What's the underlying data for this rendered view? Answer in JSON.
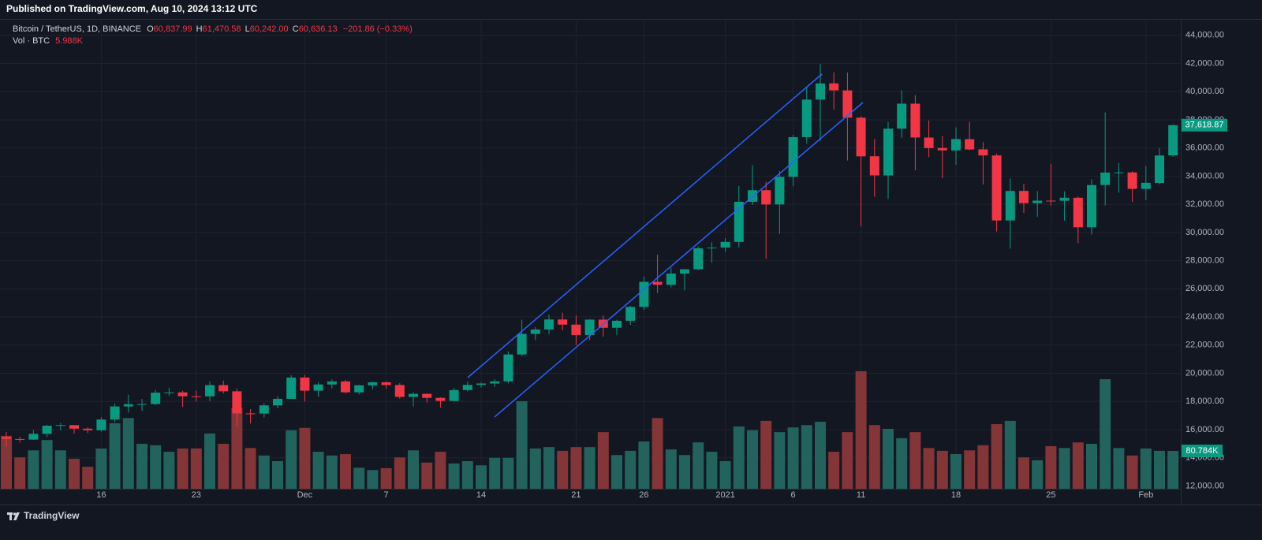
{
  "header": {
    "title": "Published on TradingView.com, Aug 10, 2024 13:12 UTC"
  },
  "legend": {
    "symbol": "Bitcoin / TetherUS, 1D, BINANCE",
    "ohlc": [
      {
        "key": "O",
        "value": "60,837.99"
      },
      {
        "key": "H",
        "value": "61,470.58"
      },
      {
        "key": "L",
        "value": "60,242.00"
      },
      {
        "key": "C",
        "value": "60,636.13"
      }
    ],
    "change": "−201.86 (−0.33%)",
    "volume_key": "Vol · BTC",
    "volume_value": "5.988K"
  },
  "footer": {
    "brand": "TradingView"
  },
  "chart_data": {
    "type": "candlestick",
    "categories": [
      null,
      null,
      null,
      null,
      null,
      null,
      null,
      "16",
      null,
      null,
      null,
      null,
      null,
      null,
      "23",
      null,
      null,
      null,
      null,
      null,
      null,
      null,
      "Dec",
      null,
      null,
      null,
      null,
      null,
      "7",
      null,
      null,
      null,
      null,
      null,
      null,
      "14",
      null,
      null,
      null,
      null,
      null,
      null,
      "21",
      null,
      null,
      null,
      null,
      "26",
      null,
      null,
      null,
      null,
      null,
      "2021",
      null,
      null,
      null,
      null,
      "6",
      null,
      null,
      null,
      null,
      "11",
      null,
      null,
      null,
      null,
      null,
      null,
      "18",
      null,
      null,
      null,
      null,
      null,
      null,
      "25",
      null,
      null,
      null,
      null,
      null,
      null,
      "Feb",
      null,
      null
    ],
    "open": [
      15479,
      15332,
      15290,
      15701,
      16276,
      16318,
      16068,
      15955,
      16716,
      17645,
      17804,
      17817,
      18621,
      18642,
      18370,
      18364,
      19159,
      18720,
      17150,
      17139,
      17720,
      18185,
      19696,
      18765,
      19205,
      19421,
      18650,
      19147,
      19359,
      19166,
      18324,
      18541,
      18254,
      18036,
      18808,
      19175,
      19273,
      19426,
      21335,
      22797,
      23107,
      23821,
      23455,
      22719,
      23810,
      23232,
      23729,
      24712,
      26493,
      26281,
      27079,
      27385,
      28875,
      28923,
      29332,
      32178,
      33000,
      31989,
      33949,
      36769,
      39432,
      40586,
      40088,
      38150,
      35410,
      34049,
      37371,
      39145,
      36737,
      35995,
      35825,
      36622,
      35901,
      35468,
      30851,
      32950,
      32078,
      32259,
      32254,
      32464,
      30366,
      33368,
      34246,
      34262,
      33092,
      33517,
      35472
    ],
    "high": [
      15840,
      15486,
      15965,
      16340,
      16480,
      16326,
      16158,
      16880,
      17858,
      18476,
      18179,
      18815,
      18965,
      18750,
      18770,
      19418,
      19484,
      18915,
      17457,
      17880,
      18360,
      19863,
      19888,
      19342,
      19566,
      19527,
      19177,
      19420,
      19420,
      19294,
      18639,
      18557,
      18292,
      18948,
      19411,
      19349,
      19570,
      21560,
      23800,
      23285,
      24171,
      24295,
      24102,
      23837,
      24100,
      23794,
      24789,
      26867,
      28422,
      27500,
      27410,
      28996,
      29300,
      29600,
      33300,
      34778,
      33600,
      34360,
      36939,
      40365,
      41950,
      41380,
      41350,
      38264,
      36628,
      37850,
      40100,
      39747,
      37950,
      36852,
      37469,
      37850,
      36415,
      35600,
      33826,
      33456,
      32944,
      34880,
      32921,
      32557,
      33783,
      38531,
      34933,
      34342,
      34717,
      35984,
      37662
    ],
    "low": [
      14805,
      15082,
      15270,
      15464,
      15952,
      15715,
      15757,
      15864,
      16531,
      17214,
      17335,
      17740,
      18398,
      17610,
      18000,
      18018,
      18570,
      16188,
      16438,
      16865,
      17517,
      18185,
      18001,
      18330,
      18925,
      18565,
      18500,
      18857,
      18902,
      18200,
      17650,
      17911,
      17572,
      18020,
      18711,
      19000,
      19050,
      19278,
      21230,
      22350,
      22750,
      23060,
      22000,
      22353,
      22600,
      22703,
      23433,
      24500,
      25700,
      26101,
      25880,
      27320,
      27850,
      28624,
      28946,
      31962,
      28130,
      29900,
      33288,
      36300,
      36500,
      38720,
      35111,
      30420,
      32531,
      32380,
      36701,
      34408,
      35357,
      33850,
      34800,
      35844,
      33400,
      30071,
      28850,
      31390,
      31106,
      31910,
      30837,
      29241,
      29842,
      31915,
      32825,
      32171,
      32296,
      33418,
      35362
    ],
    "close": [
      15332,
      15290,
      15701,
      16276,
      16318,
      16068,
      15955,
      16716,
      17645,
      17804,
      17817,
      18621,
      18642,
      18370,
      18364,
      19159,
      18720,
      17150,
      17139,
      17720,
      18185,
      19696,
      18765,
      19205,
      19421,
      18650,
      19147,
      19359,
      19166,
      18324,
      18541,
      18254,
      18036,
      18808,
      19175,
      19273,
      19426,
      21335,
      22797,
      23107,
      23821,
      23455,
      22719,
      23810,
      23232,
      23729,
      24712,
      26493,
      26281,
      27079,
      27385,
      28875,
      28923,
      29332,
      32178,
      33000,
      31988,
      33949,
      36769,
      39432,
      40582,
      40088,
      38150,
      35404,
      34051,
      37371,
      39144,
      36742,
      35994,
      35828,
      36631,
      35891,
      35468,
      30850,
      32945,
      32078,
      32259,
      32254,
      32467,
      30366,
      33364,
      34252,
      34262,
      33092,
      33526,
      35466,
      37618.87
    ],
    "volume": [
      113000,
      67000,
      82000,
      104000,
      82000,
      64000,
      47000,
      86000,
      140000,
      151000,
      96000,
      93000,
      79000,
      86000,
      86000,
      118000,
      96000,
      173000,
      87000,
      71000,
      59000,
      125000,
      130000,
      79000,
      71000,
      74000,
      45000,
      40000,
      44000,
      67000,
      82000,
      56000,
      79000,
      54000,
      59000,
      50000,
      66000,
      66000,
      187000,
      86000,
      89000,
      81000,
      89000,
      89000,
      121000,
      72000,
      81000,
      101000,
      151000,
      84000,
      72000,
      99000,
      79000,
      59000,
      133000,
      125000,
      145000,
      121000,
      131000,
      136000,
      143000,
      79000,
      121000,
      251000,
      136000,
      128000,
      108000,
      121000,
      87000,
      81000,
      74000,
      82000,
      93000,
      138000,
      145000,
      67000,
      61000,
      91000,
      87000,
      99000,
      96000,
      234000,
      87000,
      71000,
      86000,
      81000,
      80784
    ],
    "last_close_label": "37,618.87",
    "last_volume_label": "80.784K",
    "ylim": [
      11800,
      45050
    ],
    "vlim": [
      0,
      1000000
    ],
    "yticks": [
      {
        "value": 12000,
        "label": "12,000.00"
      },
      {
        "value": 14000,
        "label": "14,000.00"
      },
      {
        "value": 16000,
        "label": "16,000.00"
      },
      {
        "value": 18000,
        "label": "18,000.00"
      },
      {
        "value": 20000,
        "label": "20,000.00"
      },
      {
        "value": 22000,
        "label": "22,000.00"
      },
      {
        "value": 24000,
        "label": "24,000.00"
      },
      {
        "value": 26000,
        "label": "26,000.00"
      },
      {
        "value": 28000,
        "label": "28,000.00"
      },
      {
        "value": 30000,
        "label": "30,000.00"
      },
      {
        "value": 32000,
        "label": "32,000.00"
      },
      {
        "value": 34000,
        "label": "34,000.00"
      },
      {
        "value": 36000,
        "label": "36,000.00"
      },
      {
        "value": 38000,
        "label": "38,000.00"
      },
      {
        "value": 40000,
        "label": "40,000.00"
      },
      {
        "value": 42000,
        "label": "42,000.00"
      },
      {
        "value": 44000,
        "label": "44,000.00"
      }
    ],
    "grid": true,
    "up_color": "#089981",
    "down_color": "#f23645",
    "volume_up_color": "#22635e",
    "volume_down_color": "#833538"
  }
}
